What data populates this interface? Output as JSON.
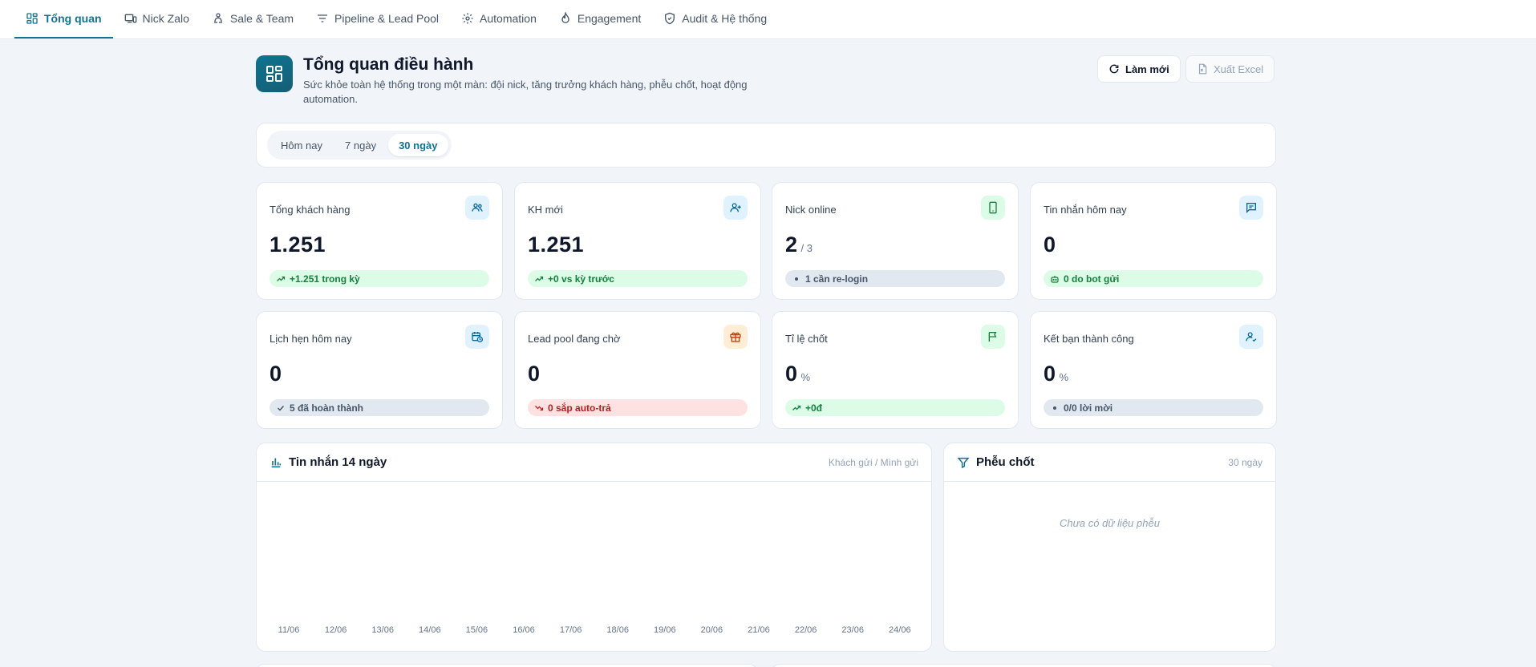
{
  "nav": {
    "tabs": [
      {
        "label": "Tổng quan",
        "icon": "dashboard-icon",
        "active": true
      },
      {
        "label": "Nick Zalo",
        "icon": "devices-icon"
      },
      {
        "label": "Sale & Team",
        "icon": "team-icon"
      },
      {
        "label": "Pipeline & Lead Pool",
        "icon": "filter-lines-icon"
      },
      {
        "label": "Automation",
        "icon": "gear-icon"
      },
      {
        "label": "Engagement",
        "icon": "flame-icon"
      },
      {
        "label": "Audit & Hệ thống",
        "icon": "shield-check-icon"
      }
    ]
  },
  "header": {
    "title": "Tổng quan điều hành",
    "subtitle": "Sức khỏe toàn hệ thống trong một màn: đội nick, tăng trưởng khách hàng, phễu chốt, hoạt động automation.",
    "refresh_label": "Làm mới",
    "export_label": "Xuất Excel"
  },
  "range": {
    "options": [
      "Hôm nay",
      "7 ngày",
      "30 ngày"
    ],
    "selected": "30 ngày"
  },
  "stats": [
    {
      "label": "Tổng khách hàng",
      "value": "1.251",
      "unit": "",
      "pill": "+1.251 trong kỳ",
      "pill_style": "green",
      "icon": "users-icon"
    },
    {
      "label": "KH mới",
      "value": "1.251",
      "unit": "",
      "pill": "+0 vs kỳ trước",
      "pill_style": "green",
      "icon": "user-plus-icon"
    },
    {
      "label": "Nick online",
      "value": "2",
      "unit": "/ 3",
      "pill": "1 cần re-login",
      "pill_style": "gray",
      "icon": "phone-icon"
    },
    {
      "label": "Tin nhắn hôm nay",
      "value": "0",
      "unit": "",
      "pill": "0 do bot gửi",
      "pill_style": "green",
      "icon": "message-icon"
    },
    {
      "label": "Lịch hẹn hôm nay",
      "value": "0",
      "unit": "",
      "pill": "5 đã hoàn thành",
      "pill_style": "gray",
      "icon": "calendar-clock-icon"
    },
    {
      "label": "Lead pool đang chờ",
      "value": "0",
      "unit": "",
      "pill": "0 sắp auto-trả",
      "pill_style": "red",
      "icon": "gift-icon"
    },
    {
      "label": "Tỉ lệ chốt",
      "value": "0",
      "unit": "%",
      "pill": "+0đ",
      "pill_style": "green",
      "icon": "flag-icon"
    },
    {
      "label": "Kết bạn thành công",
      "value": "0",
      "unit": "%",
      "pill": "0/0 lời mời",
      "pill_style": "gray",
      "icon": "user-check-icon"
    }
  ],
  "messages_panel": {
    "title": "Tin nhắn 14 ngày",
    "meta": "Khách gửi / Mình gửi",
    "icon": "bar-chart-icon"
  },
  "chart_data": {
    "type": "bar",
    "categories": [
      "11/06",
      "12/06",
      "13/06",
      "14/06",
      "15/06",
      "16/06",
      "17/06",
      "18/06",
      "19/06",
      "20/06",
      "21/06",
      "22/06",
      "23/06",
      "24/06"
    ],
    "series": [
      {
        "values": [
          0,
          0,
          0,
          0,
          0,
          0,
          0,
          0,
          0,
          0,
          0,
          0,
          0,
          0
        ]
      },
      {
        "values": [
          0,
          0,
          0,
          0,
          0,
          0,
          0,
          0,
          0,
          0,
          0,
          0,
          0,
          0
        ]
      }
    ],
    "title": "Tin nhắn 14 ngày",
    "xlabel": "",
    "ylabel": ""
  },
  "funnel_panel": {
    "title": "Phễu chốt",
    "meta": "30 ngày",
    "empty": "Chưa có dữ liệu phễu",
    "icon": "funnel-icon"
  },
  "colors": {
    "accent": "#0e7490",
    "green": "#15803d",
    "red": "#b91c1c",
    "orange": "#c2410c"
  }
}
